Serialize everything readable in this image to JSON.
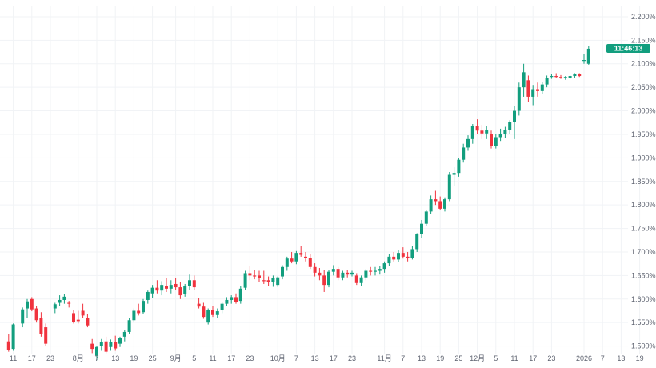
{
  "colors": {
    "up": "#129e7e",
    "down": "#f0333e",
    "grid": "#f1f3f6",
    "text": "#5e6370",
    "price_label_bg": "#129e7e"
  },
  "price_label": "11:46:13",
  "chart_data": {
    "type": "candlestick",
    "title": "",
    "xlabel": "",
    "ylabel": "",
    "ylim": [
      1.484,
      2.222
    ],
    "grid": true,
    "y_ticks": [
      "1.500%",
      "1.550%",
      "1.600%",
      "1.650%",
      "1.700%",
      "1.750%",
      "1.800%",
      "1.850%",
      "1.900%",
      "1.950%",
      "2.000%",
      "2.050%",
      "2.100%",
      "2.150%",
      "2.200%"
    ],
    "y_tick_values": [
      1.5,
      1.55,
      1.6,
      1.65,
      1.7,
      1.75,
      1.8,
      1.85,
      1.9,
      1.95,
      2.0,
      2.05,
      2.1,
      2.15,
      2.2
    ],
    "x_ticks": [
      {
        "label": "11",
        "i": 2
      },
      {
        "label": "17",
        "i": 6
      },
      {
        "label": "23",
        "i": 10
      },
      {
        "label": "8月",
        "i": 16
      },
      {
        "label": "7",
        "i": 20
      },
      {
        "label": "13",
        "i": 24
      },
      {
        "label": "19",
        "i": 28
      },
      {
        "label": "25",
        "i": 32
      },
      {
        "label": "9月",
        "i": 37
      },
      {
        "label": "5",
        "i": 41
      },
      {
        "label": "11",
        "i": 45
      },
      {
        "label": "17",
        "i": 49
      },
      {
        "label": "23",
        "i": 53
      },
      {
        "label": "10月",
        "i": 59
      },
      {
        "label": "7",
        "i": 63
      },
      {
        "label": "13",
        "i": 67
      },
      {
        "label": "17",
        "i": 71
      },
      {
        "label": "23",
        "i": 75
      },
      {
        "label": "11月",
        "i": 82
      },
      {
        "label": "7",
        "i": 86
      },
      {
        "label": "13",
        "i": 90
      },
      {
        "label": "19",
        "i": 94
      },
      {
        "label": "25",
        "i": 98
      },
      {
        "label": "12月",
        "i": 102
      },
      {
        "label": "5",
        "i": 106
      },
      {
        "label": "11",
        "i": 110
      },
      {
        "label": "17",
        "i": 114
      },
      {
        "label": "23",
        "i": 118
      },
      {
        "label": "2026",
        "i": 125
      },
      {
        "label": "7",
        "i": 129
      },
      {
        "label": "13",
        "i": 133
      },
      {
        "label": "19",
        "i": 137
      }
    ],
    "candles": [
      [
        1.51,
        1.525,
        1.488,
        1.492
      ],
      [
        1.494,
        1.548,
        1.49,
        1.546
      ],
      [
        1.548,
        1.582,
        1.54,
        1.578
      ],
      [
        1.58,
        1.6,
        1.56,
        1.595
      ],
      [
        1.6,
        1.604,
        1.574,
        1.578
      ],
      [
        1.58,
        1.586,
        1.55,
        1.555
      ],
      [
        1.56,
        1.572,
        1.52,
        1.525
      ],
      [
        1.54,
        1.548,
        1.5,
        1.505
      ],
      [
        1.58,
        1.592,
        1.57,
        1.589
      ],
      [
        1.592,
        1.608,
        1.585,
        1.598
      ],
      [
        1.598,
        1.61,
        1.59,
        1.605
      ],
      [
        1.592,
        1.596,
        1.582,
        1.59
      ],
      [
        1.57,
        1.576,
        1.548,
        1.552
      ],
      [
        1.556,
        1.575,
        1.548,
        1.553
      ],
      [
        1.575,
        1.59,
        1.56,
        1.565
      ],
      [
        1.56,
        1.568,
        1.54,
        1.544
      ],
      [
        1.505,
        1.515,
        1.485,
        1.494
      ],
      [
        1.48,
        1.5,
        1.47,
        1.498
      ],
      [
        1.5,
        1.515,
        1.49,
        1.508
      ],
      [
        1.51,
        1.52,
        1.485,
        1.488
      ],
      [
        1.498,
        1.514,
        1.49,
        1.508
      ],
      [
        1.508,
        1.522,
        1.49,
        1.495
      ],
      [
        1.505,
        1.52,
        1.498,
        1.518
      ],
      [
        1.52,
        1.535,
        1.51,
        1.53
      ],
      [
        1.53,
        1.56,
        1.525,
        1.555
      ],
      [
        1.555,
        1.58,
        1.55,
        1.575
      ],
      [
        1.575,
        1.59,
        1.565,
        1.57
      ],
      [
        1.572,
        1.6,
        1.568,
        1.596
      ],
      [
        1.598,
        1.618,
        1.59,
        1.615
      ],
      [
        1.612,
        1.63,
        1.602,
        1.624
      ],
      [
        1.624,
        1.64,
        1.612,
        1.618
      ],
      [
        1.618,
        1.638,
        1.608,
        1.63
      ],
      [
        1.628,
        1.645,
        1.615,
        1.622
      ],
      [
        1.622,
        1.64,
        1.612,
        1.63
      ],
      [
        1.632,
        1.645,
        1.62,
        1.625
      ],
      [
        1.625,
        1.636,
        1.6,
        1.608
      ],
      [
        1.61,
        1.632,
        1.605,
        1.628
      ],
      [
        1.628,
        1.652,
        1.62,
        1.64
      ],
      [
        1.64,
        1.65,
        1.62,
        1.625
      ],
      [
        1.59,
        1.602,
        1.58,
        1.584
      ],
      [
        1.584,
        1.592,
        1.558,
        1.562
      ],
      [
        1.55,
        1.58,
        1.546,
        1.576
      ],
      [
        1.576,
        1.586,
        1.562,
        1.566
      ],
      [
        1.566,
        1.58,
        1.56,
        1.574
      ],
      [
        1.576,
        1.594,
        1.57,
        1.59
      ],
      [
        1.59,
        1.604,
        1.585,
        1.598
      ],
      [
        1.598,
        1.608,
        1.59,
        1.604
      ],
      [
        1.604,
        1.612,
        1.59,
        1.594
      ],
      [
        1.596,
        1.628,
        1.59,
        1.622
      ],
      [
        1.624,
        1.66,
        1.62,
        1.655
      ],
      [
        1.655,
        1.67,
        1.64,
        1.65
      ],
      [
        1.65,
        1.662,
        1.642,
        1.648
      ],
      [
        1.65,
        1.66,
        1.636,
        1.645
      ],
      [
        1.64,
        1.66,
        1.632,
        1.638
      ],
      [
        1.64,
        1.648,
        1.628,
        1.636
      ],
      [
        1.636,
        1.65,
        1.626,
        1.644
      ],
      [
        1.63,
        1.648,
        1.626,
        1.646
      ],
      [
        1.648,
        1.672,
        1.642,
        1.668
      ],
      [
        1.668,
        1.69,
        1.66,
        1.686
      ],
      [
        1.686,
        1.7,
        1.676,
        1.68
      ],
      [
        1.68,
        1.702,
        1.674,
        1.698
      ],
      [
        1.698,
        1.712,
        1.69,
        1.694
      ],
      [
        1.69,
        1.7,
        1.68,
        1.688
      ],
      [
        1.688,
        1.696,
        1.664,
        1.668
      ],
      [
        1.668,
        1.676,
        1.648,
        1.656
      ],
      [
        1.656,
        1.666,
        1.64,
        1.65
      ],
      [
        1.65,
        1.662,
        1.615,
        1.63
      ],
      [
        1.63,
        1.662,
        1.625,
        1.658
      ],
      [
        1.658,
        1.672,
        1.65,
        1.664
      ],
      [
        1.664,
        1.668,
        1.64,
        1.646
      ],
      [
        1.646,
        1.66,
        1.64,
        1.656
      ],
      [
        1.656,
        1.662,
        1.646,
        1.652
      ],
      [
        1.652,
        1.66,
        1.648,
        1.656
      ],
      [
        1.65,
        1.655,
        1.63,
        1.634
      ],
      [
        1.634,
        1.65,
        1.628,
        1.646
      ],
      [
        1.646,
        1.664,
        1.64,
        1.66
      ],
      [
        1.66,
        1.668,
        1.65,
        1.658
      ],
      [
        1.658,
        1.668,
        1.65,
        1.66
      ],
      [
        1.66,
        1.67,
        1.652,
        1.664
      ],
      [
        1.664,
        1.68,
        1.656,
        1.676
      ],
      [
        1.676,
        1.696,
        1.67,
        1.69
      ],
      [
        1.69,
        1.7,
        1.68,
        1.684
      ],
      [
        1.684,
        1.704,
        1.678,
        1.698
      ],
      [
        1.698,
        1.71,
        1.686,
        1.69
      ],
      [
        1.69,
        1.7,
        1.68,
        1.688
      ],
      [
        1.688,
        1.712,
        1.684,
        1.706
      ],
      [
        1.706,
        1.74,
        1.7,
        1.738
      ],
      [
        1.738,
        1.768,
        1.73,
        1.76
      ],
      [
        1.76,
        1.79,
        1.755,
        1.786
      ],
      [
        1.786,
        1.82,
        1.78,
        1.812
      ],
      [
        1.812,
        1.83,
        1.8,
        1.808
      ],
      [
        1.808,
        1.818,
        1.79,
        1.792
      ],
      [
        1.792,
        1.816,
        1.786,
        1.812
      ],
      [
        1.812,
        1.87,
        1.808,
        1.864
      ],
      [
        1.864,
        1.88,
        1.84,
        1.868
      ],
      [
        1.868,
        1.9,
        1.86,
        1.896
      ],
      [
        1.896,
        1.93,
        1.89,
        1.922
      ],
      [
        1.922,
        1.948,
        1.915,
        1.94
      ],
      [
        1.94,
        1.972,
        1.93,
        1.968
      ],
      [
        1.968,
        1.982,
        1.95,
        1.958
      ],
      [
        1.958,
        1.97,
        1.94,
        1.952
      ],
      [
        1.952,
        1.968,
        1.94,
        1.96
      ],
      [
        1.95,
        1.958,
        1.92,
        1.926
      ],
      [
        1.926,
        1.95,
        1.92,
        1.944
      ],
      [
        1.944,
        1.962,
        1.936,
        1.95
      ],
      [
        1.95,
        1.966,
        1.942,
        1.96
      ],
      [
        1.96,
        1.98,
        1.95,
        1.976
      ],
      [
        1.976,
        2.01,
        1.94,
        2.0
      ],
      [
        2.0,
        2.06,
        1.99,
        2.05
      ],
      [
        2.05,
        2.1,
        2.03,
        2.082
      ],
      [
        2.065,
        2.075,
        2.018,
        2.03
      ],
      [
        2.03,
        2.055,
        2.012,
        2.046
      ],
      [
        2.046,
        2.06,
        2.03,
        2.042
      ],
      [
        2.042,
        2.062,
        2.036,
        2.056
      ],
      [
        2.056,
        2.075,
        2.05,
        2.07
      ],
      [
        2.072,
        2.078,
        2.068,
        2.074
      ],
      [
        2.074,
        2.08,
        2.07,
        2.072
      ],
      [
        2.072,
        2.076,
        2.068,
        2.07
      ],
      [
        2.07,
        2.074,
        2.066,
        2.072
      ],
      [
        2.07,
        2.075,
        2.068,
        2.074
      ],
      [
        2.074,
        2.08,
        2.07,
        2.078
      ],
      [
        2.078,
        2.08,
        2.072,
        2.074
      ],
      [
        2.106,
        2.12,
        2.1,
        2.108
      ],
      [
        2.1,
        2.138,
        2.098,
        2.132
      ]
    ],
    "candle_slots": [
      1,
      2,
      4,
      5,
      6,
      7,
      8,
      9,
      11,
      12,
      13,
      14,
      15,
      16,
      17,
      18,
      19,
      20,
      21,
      22,
      23,
      24,
      25,
      26,
      27,
      28,
      29,
      30,
      31,
      32,
      33,
      34,
      35,
      36,
      37,
      38,
      39,
      40,
      41,
      42,
      43,
      44,
      45,
      46,
      47,
      48,
      49,
      50,
      51,
      52,
      53,
      54,
      55,
      56,
      57,
      58,
      59,
      60,
      61,
      62,
      63,
      64,
      65,
      66,
      67,
      68,
      69,
      70,
      71,
      72,
      73,
      74,
      75,
      76,
      77,
      78,
      79,
      80,
      81,
      82,
      83,
      84,
      85,
      86,
      87,
      88,
      89,
      90,
      91,
      92,
      93,
      94,
      95,
      96,
      97,
      98,
      99,
      100,
      101,
      102,
      103,
      104,
      105,
      106,
      107,
      108,
      109,
      110,
      111,
      112,
      113,
      114,
      115,
      116,
      117,
      118,
      119,
      120,
      121,
      122,
      123,
      124,
      125,
      126
    ]
  }
}
